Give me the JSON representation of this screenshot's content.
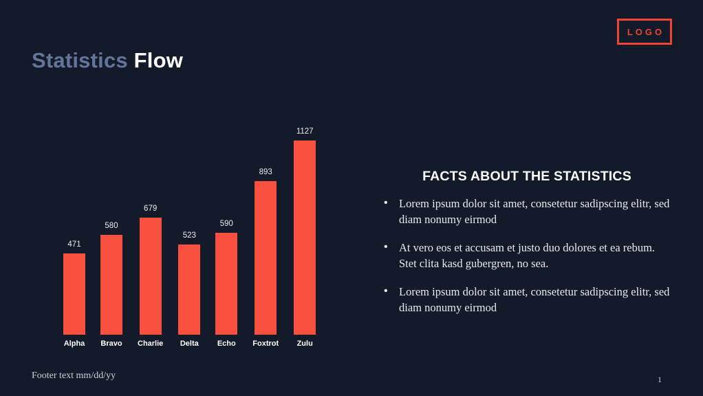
{
  "slide": {
    "background_color": "#131a2a",
    "accent_color": "#fa5040",
    "footer": "Footer text mm/dd/yy",
    "page_number": "1"
  },
  "logo": {
    "label": "LOGO",
    "color": "#ef4433"
  },
  "title": {
    "part1": "Statistics",
    "part2": "Flow",
    "part1_color": "#64759c",
    "part2_color": "#ffffff"
  },
  "facts": {
    "heading": "FACTS ABOUT THE STATISTICS",
    "bullets": [
      "Lorem ipsum dolor sit amet, consetetur sadipscing elitr, sed diam nonumy eirmod",
      "At vero eos et accusam et justo duo dolores et ea rebum. Stet clita kasd gubergren, no sea.",
      "Lorem ipsum dolor sit amet, consetetur sadipscing elitr, sed diam nonumy eirmod"
    ]
  },
  "chart_data": {
    "type": "bar",
    "categories": [
      "Alpha",
      "Bravo",
      "Charlie",
      "Delta",
      "Echo",
      "Foxtrot",
      "Zulu"
    ],
    "values": [
      471,
      580,
      679,
      523,
      590,
      893,
      1127
    ],
    "title": "",
    "xlabel": "",
    "ylabel": "",
    "ylim": [
      0,
      1127
    ],
    "bar_color": "#fa5040",
    "value_labels_shown": true,
    "grid": false,
    "axes_shown": false,
    "legend": "none"
  }
}
